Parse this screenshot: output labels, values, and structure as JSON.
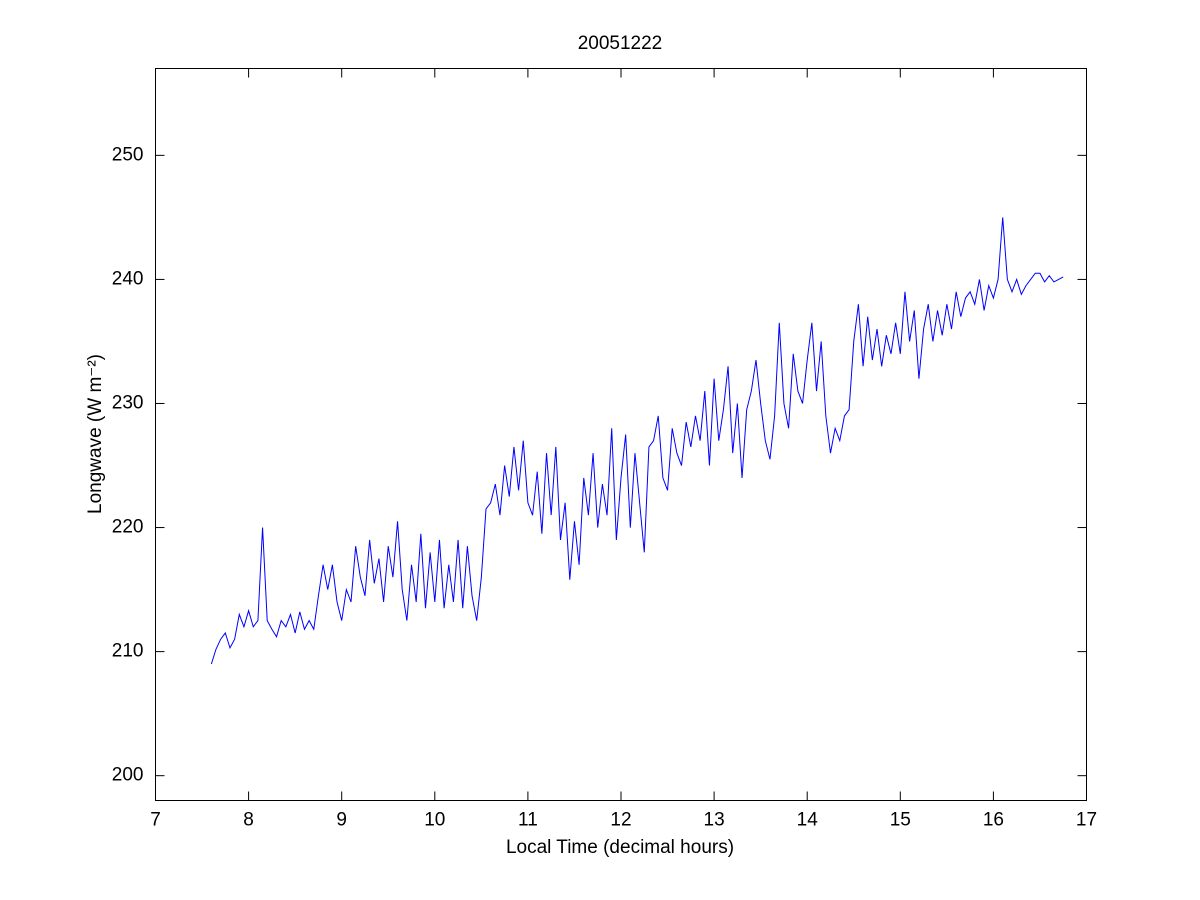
{
  "chart_data": {
    "type": "line",
    "title": "20051222",
    "xlabel": "Local Time (decimal hours)",
    "ylabel": "Longwave (W m⁻²)",
    "color": "#0000ff",
    "xlim": [
      7,
      17
    ],
    "xticks": [
      7,
      8,
      9,
      10,
      11,
      12,
      13,
      14,
      15,
      16,
      17
    ],
    "ylim": [
      198,
      257
    ],
    "yticks": [
      200,
      210,
      220,
      230,
      240,
      250
    ],
    "x": [
      7.6,
      7.65,
      7.7,
      7.75,
      7.8,
      7.85,
      7.9,
      7.95,
      8.0,
      8.05,
      8.1,
      8.15,
      8.2,
      8.25,
      8.3,
      8.35,
      8.4,
      8.45,
      8.5,
      8.55,
      8.6,
      8.65,
      8.7,
      8.75,
      8.8,
      8.85,
      8.9,
      8.95,
      9.0,
      9.05,
      9.1,
      9.15,
      9.2,
      9.25,
      9.3,
      9.35,
      9.4,
      9.45,
      9.5,
      9.55,
      9.6,
      9.65,
      9.7,
      9.75,
      9.8,
      9.85,
      9.9,
      9.95,
      10.0,
      10.05,
      10.1,
      10.15,
      10.2,
      10.25,
      10.3,
      10.35,
      10.4,
      10.45,
      10.5,
      10.55,
      10.6,
      10.65,
      10.7,
      10.75,
      10.8,
      10.85,
      10.9,
      10.95,
      11.0,
      11.05,
      11.1,
      11.15,
      11.2,
      11.25,
      11.3,
      11.35,
      11.4,
      11.45,
      11.5,
      11.55,
      11.6,
      11.65,
      11.7,
      11.75,
      11.8,
      11.85,
      11.9,
      11.95,
      12.0,
      12.05,
      12.1,
      12.15,
      12.2,
      12.25,
      12.3,
      12.35,
      12.4,
      12.45,
      12.5,
      12.55,
      12.6,
      12.65,
      12.7,
      12.75,
      12.8,
      12.85,
      12.9,
      12.95,
      13.0,
      13.05,
      13.1,
      13.15,
      13.2,
      13.25,
      13.3,
      13.35,
      13.4,
      13.45,
      13.5,
      13.55,
      13.6,
      13.65,
      13.7,
      13.75,
      13.8,
      13.85,
      13.9,
      13.95,
      14.0,
      14.05,
      14.1,
      14.15,
      14.2,
      14.25,
      14.3,
      14.35,
      14.4,
      14.45,
      14.5,
      14.55,
      14.6,
      14.65,
      14.7,
      14.75,
      14.8,
      14.85,
      14.9,
      14.95,
      15.0,
      15.05,
      15.1,
      15.15,
      15.2,
      15.25,
      15.3,
      15.35,
      15.4,
      15.45,
      15.5,
      15.55,
      15.6,
      15.65,
      15.7,
      15.75,
      15.8,
      15.85,
      15.9,
      15.95,
      16.0,
      16.05,
      16.1,
      16.15,
      16.2,
      16.25,
      16.3,
      16.35,
      16.4,
      16.45,
      16.5,
      16.55,
      16.6,
      16.65,
      16.7,
      16.75
    ],
    "values": [
      209.0,
      210.2,
      211.0,
      211.5,
      210.3,
      211.0,
      213.0,
      212.0,
      213.3,
      212.0,
      212.5,
      220.0,
      212.5,
      211.8,
      211.2,
      212.5,
      212.0,
      213.0,
      211.5,
      213.2,
      211.8,
      212.5,
      211.8,
      214.5,
      217.0,
      215.0,
      217.0,
      214.0,
      212.5,
      215.0,
      214.0,
      218.5,
      216.0,
      214.5,
      219.0,
      215.5,
      217.5,
      214.0,
      218.5,
      216.0,
      220.5,
      215.0,
      212.5,
      217.0,
      214.0,
      219.5,
      213.5,
      218.0,
      214.0,
      219.0,
      213.5,
      217.0,
      214.0,
      219.0,
      213.5,
      218.5,
      214.5,
      212.5,
      216.0,
      221.5,
      222.0,
      223.5,
      221.0,
      225.0,
      222.5,
      226.5,
      223.0,
      227.0,
      222.0,
      221.0,
      224.5,
      219.5,
      226.0,
      221.0,
      226.5,
      219.0,
      222.0,
      215.8,
      220.5,
      217.0,
      224.0,
      221.0,
      226.0,
      220.0,
      223.5,
      221.0,
      228.0,
      219.0,
      224.0,
      227.5,
      220.0,
      226.0,
      222.0,
      218.0,
      226.5,
      227.0,
      229.0,
      224.0,
      223.0,
      228.0,
      226.0,
      225.0,
      228.5,
      226.5,
      229.0,
      227.0,
      231.0,
      225.0,
      232.0,
      227.0,
      229.5,
      233.0,
      226.0,
      230.0,
      224.0,
      229.5,
      231.0,
      233.5,
      230.0,
      227.0,
      225.5,
      229.0,
      236.5,
      230.0,
      228.0,
      234.0,
      231.0,
      230.0,
      233.5,
      236.5,
      231.0,
      235.0,
      229.0,
      226.0,
      228.0,
      227.0,
      229.0,
      229.5,
      235.0,
      238.0,
      233.0,
      237.0,
      233.5,
      236.0,
      233.0,
      235.5,
      234.0,
      236.5,
      234.0,
      239.0,
      235.0,
      237.5,
      232.0,
      236.0,
      238.0,
      235.0,
      237.5,
      235.5,
      238.0,
      236.0,
      239.0,
      237.0,
      238.5,
      239.0,
      238.0,
      240.0,
      237.5,
      239.5,
      238.5,
      240.0,
      245.0,
      240.0,
      239.0,
      240.0,
      238.8,
      239.5,
      240.0,
      240.5,
      240.5,
      239.8,
      240.3,
      239.8,
      240.0,
      240.2
    ]
  }
}
